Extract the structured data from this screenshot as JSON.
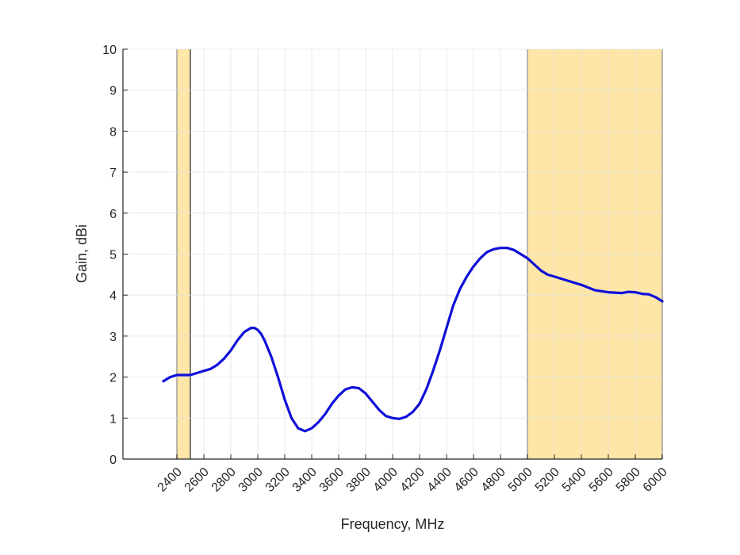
{
  "chart_data": {
    "type": "line",
    "title": "",
    "xlabel": "Frequency, MHz",
    "ylabel": "Gain, dBi",
    "xlim": [
      2000,
      6000
    ],
    "ylim": [
      0,
      10
    ],
    "grid": true,
    "colors": {
      "line": "#1010d8",
      "band_fill": "#fde6a8",
      "band_edge": "#333333",
      "grid": "#e2e2e2",
      "axis": "#262626"
    },
    "xticks": [
      2400,
      2600,
      2800,
      3000,
      3200,
      3400,
      3600,
      3800,
      4000,
      4200,
      4400,
      4600,
      4800,
      5000,
      5200,
      5400,
      5600,
      5800,
      6000
    ],
    "yticks": [
      0,
      1,
      2,
      3,
      4,
      5,
      6,
      7,
      8,
      9,
      10
    ],
    "bands": [
      {
        "x_start": 2400,
        "x_end": 2500
      },
      {
        "x_start": 5000,
        "x_end": 6000
      }
    ],
    "series": [
      {
        "x": [
          2300,
          2350,
          2400,
          2450,
          2500,
          2550,
          2600,
          2650,
          2700,
          2750,
          2800,
          2850,
          2900,
          2925,
          2950,
          2975,
          3000,
          3025,
          3050,
          3100,
          3150,
          3200,
          3250,
          3300,
          3350,
          3400,
          3450,
          3500,
          3550,
          3600,
          3650,
          3700,
          3750,
          3800,
          3850,
          3900,
          3950,
          4000,
          4050,
          4100,
          4150,
          4200,
          4250,
          4300,
          4350,
          4400,
          4450,
          4500,
          4550,
          4600,
          4650,
          4700,
          4750,
          4800,
          4850,
          4900,
          4950,
          5000,
          5050,
          5100,
          5150,
          5200,
          5300,
          5400,
          5500,
          5600,
          5700,
          5750,
          5800,
          5850,
          5900,
          5950,
          6000
        ],
        "y": [
          1.9,
          2.0,
          2.05,
          2.05,
          2.05,
          2.1,
          2.15,
          2.2,
          2.3,
          2.45,
          2.65,
          2.9,
          3.1,
          3.15,
          3.2,
          3.2,
          3.15,
          3.05,
          2.9,
          2.5,
          2.0,
          1.45,
          1.0,
          0.75,
          0.68,
          0.75,
          0.9,
          1.1,
          1.35,
          1.55,
          1.7,
          1.75,
          1.73,
          1.6,
          1.4,
          1.2,
          1.05,
          1.0,
          0.98,
          1.03,
          1.15,
          1.35,
          1.7,
          2.15,
          2.65,
          3.2,
          3.75,
          4.15,
          4.45,
          4.7,
          4.9,
          5.05,
          5.12,
          5.15,
          5.15,
          5.1,
          5.0,
          4.9,
          4.75,
          4.6,
          4.5,
          4.45,
          4.35,
          4.25,
          4.12,
          4.07,
          4.05,
          4.08,
          4.07,
          4.03,
          4.02,
          3.95,
          3.85
        ]
      }
    ]
  }
}
